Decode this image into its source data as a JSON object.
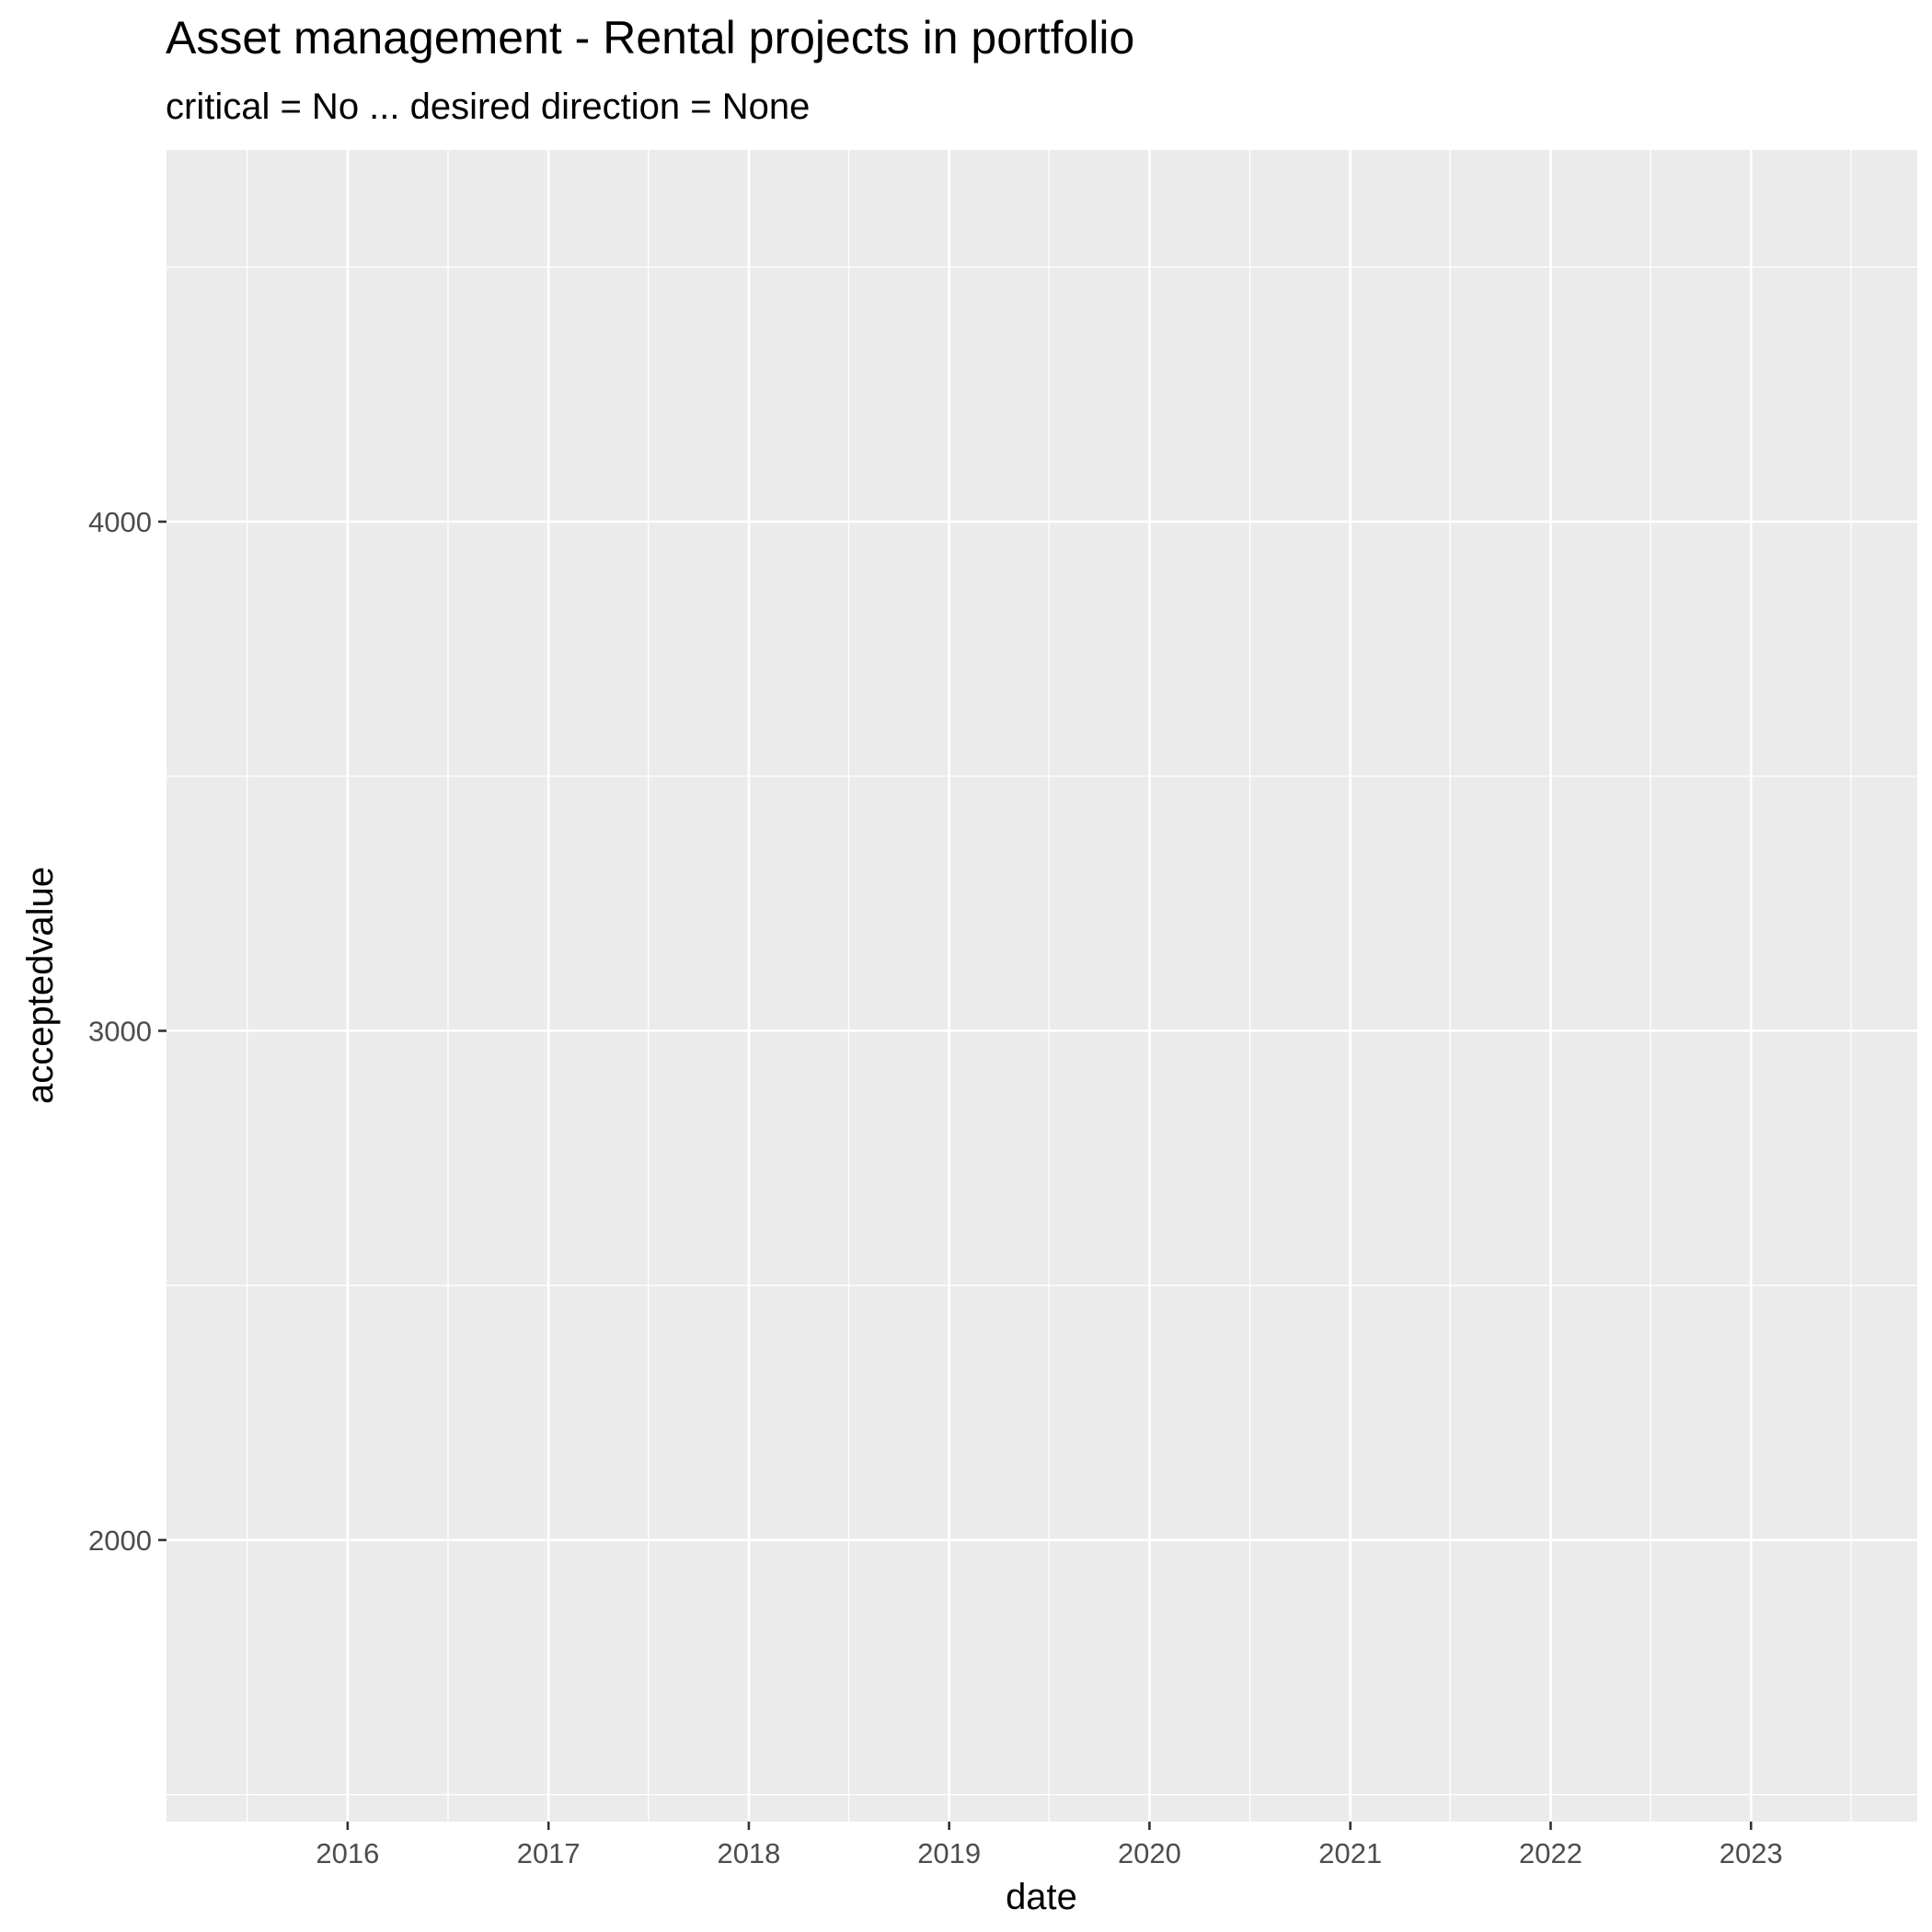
{
  "chart_data": {
    "type": "line",
    "title": "Asset management - Rental projects in portfolio",
    "subtitle": "critical = No ... desired direction = None",
    "xlabel": "date",
    "ylabel": "acceptedvalue",
    "x_ticks": [
      "2016",
      "2017",
      "2018",
      "2019",
      "2020",
      "2021",
      "2022",
      "2023"
    ],
    "y_ticks": [
      2000,
      3000,
      4000
    ],
    "xlim": [
      "2015-02-05",
      "2023-10-31"
    ],
    "ylim": [
      1447,
      4730
    ],
    "grid": true,
    "series": [],
    "panel_background": "#ebebeb",
    "grid_color": "#ffffff"
  }
}
